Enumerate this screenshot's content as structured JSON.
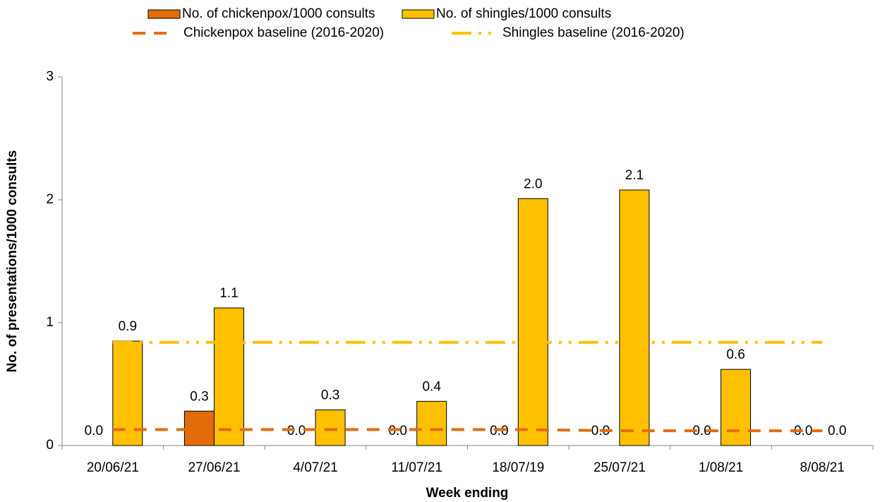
{
  "chart_data": {
    "type": "bar",
    "x_label": "Week ending",
    "y_label": "No. of presentations/1000 consults",
    "categories": [
      "20/06/21",
      "27/06/21",
      "4/07/21",
      "11/07/21",
      "18/07/19",
      "25/07/21",
      "1/08/21",
      "8/08/21"
    ],
    "series": [
      {
        "name": "No. of chickenpox/1000 consults",
        "color": "#E36C09",
        "values": [
          0,
          0.28,
          0,
          0,
          0,
          0,
          0,
          0
        ],
        "value_labels": [
          "0.0",
          "0.3",
          "0.0",
          "0.0",
          "0.0",
          "0.0",
          "0.0",
          "0.0"
        ]
      },
      {
        "name": "No. of shingles/1000 consults",
        "color": "#FFC000",
        "values": [
          0.85,
          1.12,
          0.29,
          0.36,
          2.01,
          2.08,
          0.62,
          0
        ],
        "value_labels": [
          "0.9",
          "1.1",
          "0.3",
          "0.4",
          "2.0",
          "2.1",
          "0.6",
          "0.0"
        ]
      }
    ],
    "lines": [
      {
        "name": "Chickenpox baseline (2016-2020)",
        "color": "#E36C09",
        "values": [
          0.13,
          0.13,
          0.13,
          0.13,
          0.13,
          0.12,
          0.12,
          0.12
        ]
      },
      {
        "name": "Shingles baseline (2016-2020)",
        "color": "#FFC000",
        "values": [
          0.84,
          0.84,
          0.84,
          0.84,
          0.84,
          0.84,
          0.84,
          0.84
        ]
      }
    ],
    "ylim": [
      0,
      3
    ],
    "yticks": [
      0,
      1,
      2,
      3
    ]
  }
}
